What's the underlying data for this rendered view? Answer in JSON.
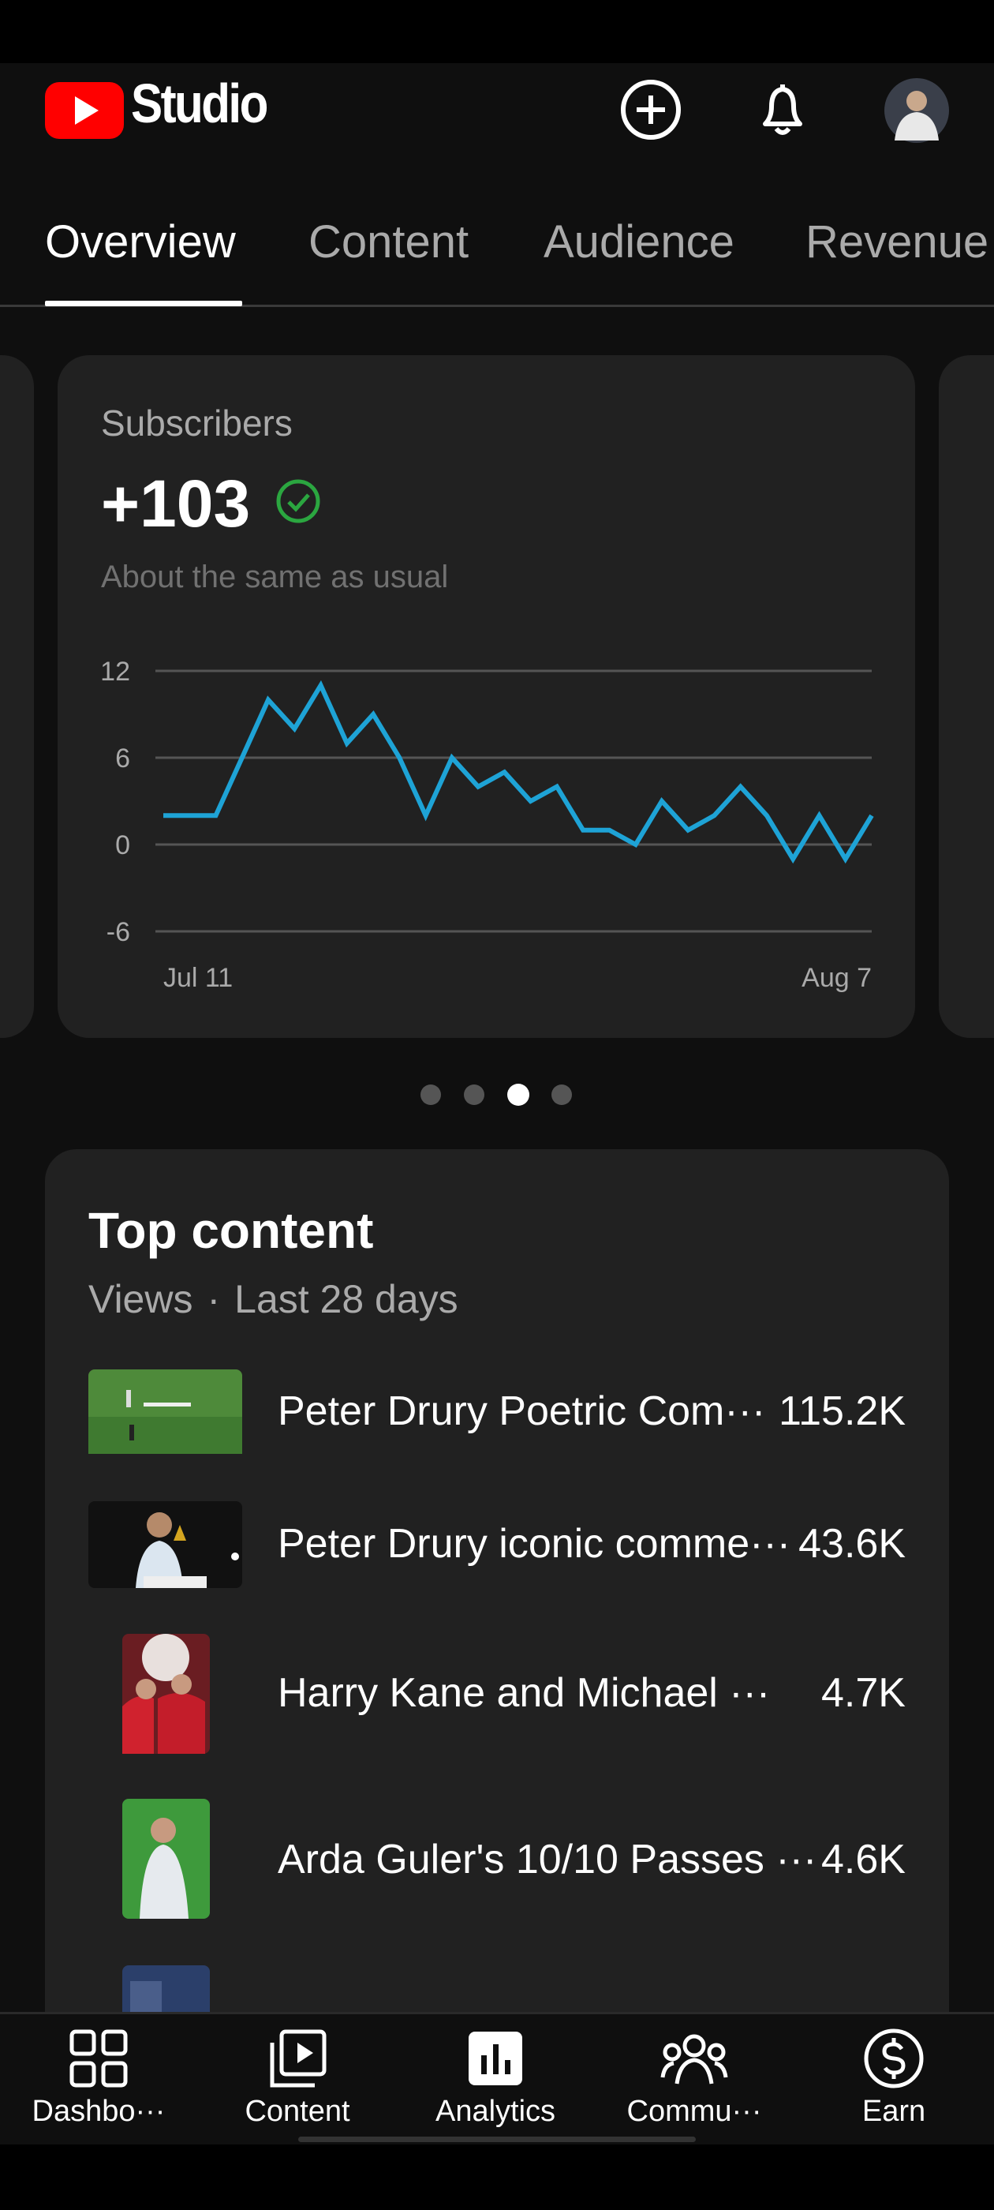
{
  "header": {
    "app": "Studio"
  },
  "tabs": [
    "Overview",
    "Content",
    "Audience",
    "Revenue"
  ],
  "card": {
    "title": "Subscribers",
    "value": "+103",
    "note": "About the same as usual"
  },
  "chart_data": {
    "type": "line",
    "categories": [
      "Jul 11",
      null,
      null,
      null,
      null,
      null,
      null,
      null,
      null,
      null,
      null,
      null,
      null,
      null,
      null,
      null,
      null,
      null,
      null,
      null,
      null,
      null,
      null,
      null,
      null,
      null,
      null,
      "Aug 7"
    ],
    "values": [
      2,
      2,
      2,
      6,
      10,
      8,
      11,
      7,
      9,
      6,
      2,
      6,
      4,
      5,
      3,
      4,
      1,
      1,
      0,
      3,
      1,
      2,
      4,
      2,
      -1,
      2,
      -1,
      2
    ],
    "color": "#1ea3d6",
    "ylim": [
      -6,
      12
    ],
    "yticks": [
      -6,
      0,
      6,
      12
    ],
    "grid": true
  },
  "top_content": {
    "title": "Top content",
    "metric": "Views",
    "separator": "·",
    "period": "Last 28 days",
    "rows": [
      {
        "title": "Peter Drury Poetric Com···",
        "views": "115.2K"
      },
      {
        "title": "Peter Drury iconic comme···",
        "views": "43.6K"
      },
      {
        "title": "Harry Kane and Michael ···",
        "views": "4.7K"
      },
      {
        "title": "Arda Guler's 10/10 Passes ···",
        "views": "4.6K"
      }
    ]
  },
  "nav": [
    "Dashbo···",
    "Content",
    "Analytics",
    "Commu···",
    "Earn"
  ]
}
